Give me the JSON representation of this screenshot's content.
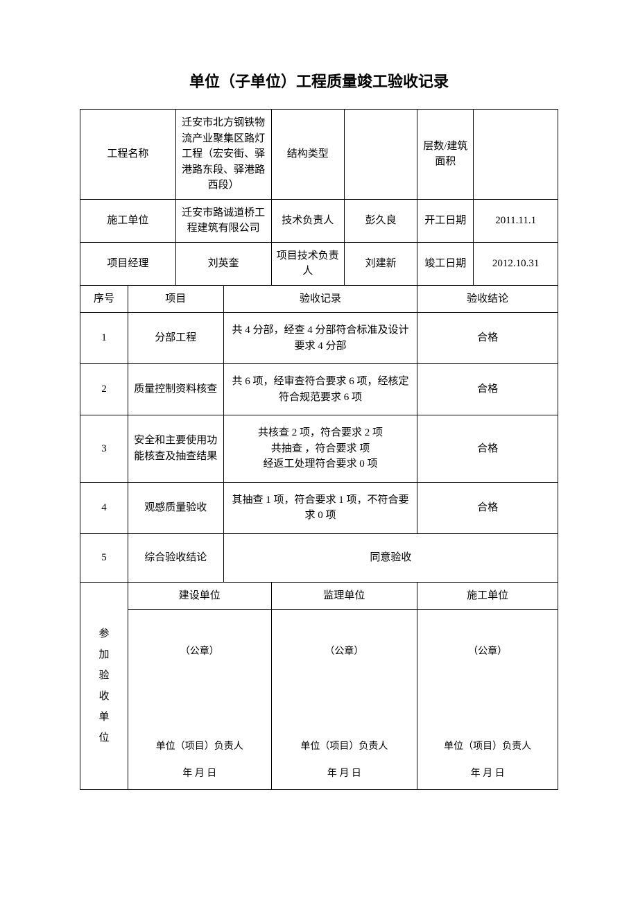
{
  "title": "单位（子单位）工程质量竣工验收记录",
  "header": {
    "project_name_label": "工程名称",
    "project_name_value": "迁安市北方钢铁物流产业聚集区路灯工程（宏安街、驿港路东段、驿港路西段）",
    "structure_type_label": "结构类型",
    "structure_type_value": "",
    "floors_area_label": "层数/建筑面积",
    "floors_area_value": "",
    "construction_unit_label": "施工单位",
    "construction_unit_value": "迁安市路诚道桥工程建筑有限公司",
    "tech_lead_label": "技术负责人",
    "tech_lead_value": "彭久良",
    "start_date_label": "开工日期",
    "start_date_value": "2011.11.1",
    "project_manager_label": "项目经理",
    "project_manager_value": "刘英奎",
    "project_tech_lead_label": "项目技术负责人",
    "project_tech_lead_value": "刘建新",
    "end_date_label": "竣工日期",
    "end_date_value": "2012.10.31"
  },
  "columns": {
    "seq": "序号",
    "item": "项目",
    "record": "验收记录",
    "conclusion": "验收结论"
  },
  "rows": [
    {
      "seq": "1",
      "item": "分部工程",
      "record": "共 4 分部，经查 4 分部符合标准及设计要求 4 分部",
      "conclusion": "合格"
    },
    {
      "seq": "2",
      "item": "质量控制资料核查",
      "record": "共 6 项，经审查符合要求 6 项，经核定符合规范要求 6 项",
      "conclusion": "合格"
    },
    {
      "seq": "3",
      "item": "安全和主要使用功能核查及抽查结果",
      "record": "共核查 2 项，符合要求 2 项\n共抽查  ，符合要求  项\n经返工处理符合要求 0 项",
      "conclusion": "合格"
    },
    {
      "seq": "4",
      "item": "观感质量验收",
      "record": "其抽查 1 项，符合要求 1 项，不符合要求 0 项",
      "conclusion": "合格"
    },
    {
      "seq": "5",
      "item": "综合验收结论",
      "final": "同意验收"
    }
  ],
  "signature": {
    "side_label": "参加验收单位",
    "columns": [
      {
        "title": "建设单位",
        "seal": "（公章）",
        "person": "单位（项目）负责人",
        "date": "年   月   日"
      },
      {
        "title": "监理单位",
        "seal": "（公章）",
        "person": "单位（项目）负责人",
        "date": "年   月   日"
      },
      {
        "title": "施工单位",
        "seal": "（公章）",
        "person": "单位（项目）负责人",
        "date": "年   月   日"
      }
    ]
  },
  "style": {
    "border_color": "#000000",
    "background": "#ffffff",
    "title_fontsize": 22,
    "cell_fontsize": 15,
    "sig_fontsize": 14
  }
}
